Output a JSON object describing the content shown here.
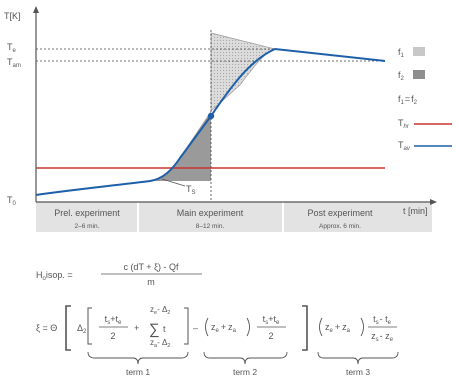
{
  "axes": {
    "y_label": "T[K]",
    "x_label": "t [min]",
    "y_ticks": {
      "Te": "T",
      "Te_sub": "e",
      "Tam": "T",
      "Tam_sub": "am",
      "T0": "T",
      "T0_sub": "0"
    }
  },
  "phases": [
    {
      "name": "Prel. experiment",
      "duration": "2–6 min."
    },
    {
      "name": "Main experiment",
      "duration": "8–12 min."
    },
    {
      "name": "Post experiment",
      "duration": "Approx. 6 min."
    }
  ],
  "annotations": {
    "ts": "T",
    "ts_sub": "S"
  },
  "legend": {
    "f1": "f",
    "f1_sub": "1",
    "f2": "f",
    "f2_sub": "2",
    "eq_a": "f",
    "eq_a_sub": "1",
    "eq_eq": "=",
    "eq_b": "f",
    "eq_b_sub": "2",
    "thr": "T",
    "thr_sub": "hr",
    "tav": "T",
    "tav_sub": "av",
    "colors": {
      "f1": "#c8c8c8",
      "f2": "#8e8e8e",
      "thr": "#c83232",
      "tav": "#1d5fa8"
    }
  },
  "formula1": {
    "lhs": "H",
    "lhs_sub": "o",
    "lhs_rest": "isop. =",
    "numerator": "c (dT + ξ) - Qf",
    "denominator": "m"
  },
  "formula2": {
    "lhs": "ξ = Θ",
    "delta2": "Δ",
    "delta2_sub": "2",
    "frac1_num": "t",
    "frac1_num_sub1": "s",
    "frac1_plus": "+",
    "frac1_num2": "t",
    "frac1_num_sub2": "e",
    "frac1_den": "2",
    "plus": "+",
    "sum_top": "z",
    "sum_top_sub": "e",
    "sum_top_rest": "- Δ",
    "sum_top_sub2": "2",
    "sum_symbol": "∑",
    "sum_var": "t",
    "sum_bot": "z",
    "sum_bot_sub": "a",
    "sum_bot_rest": "- Δ",
    "sum_bot_sub2": "2",
    "minus": "–",
    "paren2": "z",
    "paren2_sub": "e",
    "paren2_plus": "+",
    "paren2_b": "z",
    "paren2_sub_b": "a",
    "frac2_num": "t",
    "frac2_num_sub1": "s",
    "frac2_plus": "+",
    "frac2_num2": "t",
    "frac2_num_sub2": "e",
    "frac2_den": "2",
    "paren3": "z",
    "paren3_sub": "e",
    "paren3_plus": "+",
    "paren3_b": "z",
    "paren3_sub_b": "a",
    "frac3_num": "t",
    "frac3_num_sub1": "s",
    "frac3_minus": "- t",
    "frac3_num_sub2": "e",
    "frac3_den": "z",
    "frac3_den_sub1": "s",
    "frac3_den_minus": "- z",
    "frac3_den_sub2": "e",
    "term1": "term 1",
    "term2": "term 2",
    "term3": "term 3"
  }
}
